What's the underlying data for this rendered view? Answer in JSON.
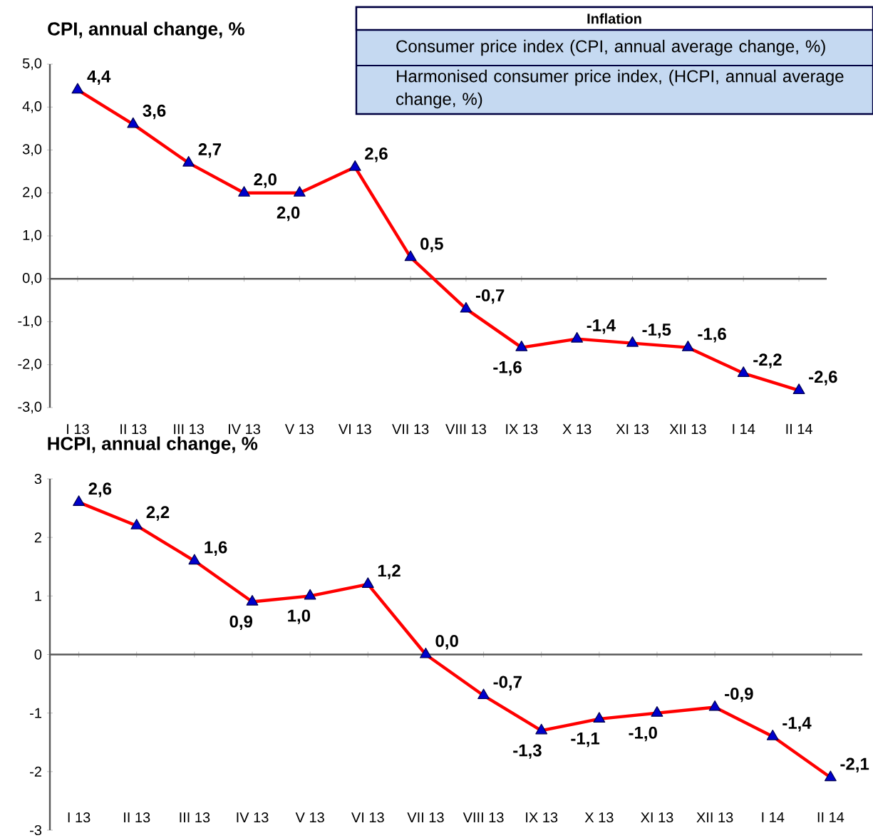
{
  "chart_data": [
    {
      "type": "other",
      "title": "Inflation",
      "annotations": [
        "Consumer price index (CPI, annual average change, %)",
        "Harmonised consumer price index, (HCPI, annual average change, %)"
      ]
    },
    {
      "type": "line",
      "title": "CPI, annual change, %",
      "marker": "triangle",
      "categories": [
        "I 13",
        "II 13",
        "III 13",
        "IV 13",
        "V 13",
        "VI 13",
        "VII 13",
        "VIII 13",
        "IX 13",
        "X 13",
        "XI 13",
        "XII 13",
        "I 14",
        "II 14"
      ],
      "series": [
        {
          "color": "#ff0000",
          "values": [
            4.4,
            3.6,
            2.7,
            2.0,
            2.0,
            2.6,
            0.5,
            -0.7,
            -1.6,
            -1.4,
            -1.5,
            -1.6,
            -2.2,
            -2.6
          ],
          "value_labels": [
            "4,4",
            "3,6",
            "2,7",
            "2,0",
            "2,0",
            "2,6",
            "0,5",
            "-0,7",
            "-1,6",
            "-1,4",
            "-1,5",
            "-1,6",
            "-2,2",
            "-2,6"
          ]
        }
      ],
      "ylim": [
        -3,
        5
      ],
      "yticks": [
        {
          "value": -3,
          "label": "-3,0"
        },
        {
          "value": -2,
          "label": "-2,0"
        },
        {
          "value": -1,
          "label": "-1,0"
        },
        {
          "value": 0,
          "label": "0,0"
        },
        {
          "value": 1,
          "label": "1,0"
        },
        {
          "value": 2,
          "label": "2,0"
        },
        {
          "value": 3,
          "label": "3,0"
        },
        {
          "value": 4,
          "label": "4,0"
        },
        {
          "value": 5,
          "label": "5,0"
        }
      ]
    },
    {
      "type": "line",
      "title": "HCPI, annual change, %",
      "marker": "triangle",
      "categories": [
        "I 13",
        "II 13",
        "III 13",
        "IV 13",
        "V 13",
        "VI 13",
        "VII 13",
        "VIII 13",
        "IX 13",
        "X 13",
        "XI 13",
        "XII 13",
        "I 14",
        "II 14"
      ],
      "series": [
        {
          "color": "#ff0000",
          "values": [
            2.6,
            2.2,
            1.6,
            0.9,
            1.0,
            1.2,
            0.0,
            -0.7,
            -1.3,
            -1.1,
            -1.0,
            -0.9,
            -1.4,
            -2.1
          ],
          "value_labels": [
            "2,6",
            "2,2",
            "1,6",
            "0,9",
            "1,0",
            "1,2",
            "0,0",
            "-0,7",
            "-1,3",
            "-1,1",
            "-1,0",
            "-0,9",
            "-1,4",
            "-2,1"
          ]
        }
      ],
      "ylim": [
        -3,
        3
      ],
      "yticks": [
        -3,
        -2,
        -1,
        0,
        1,
        2,
        3
      ]
    }
  ]
}
